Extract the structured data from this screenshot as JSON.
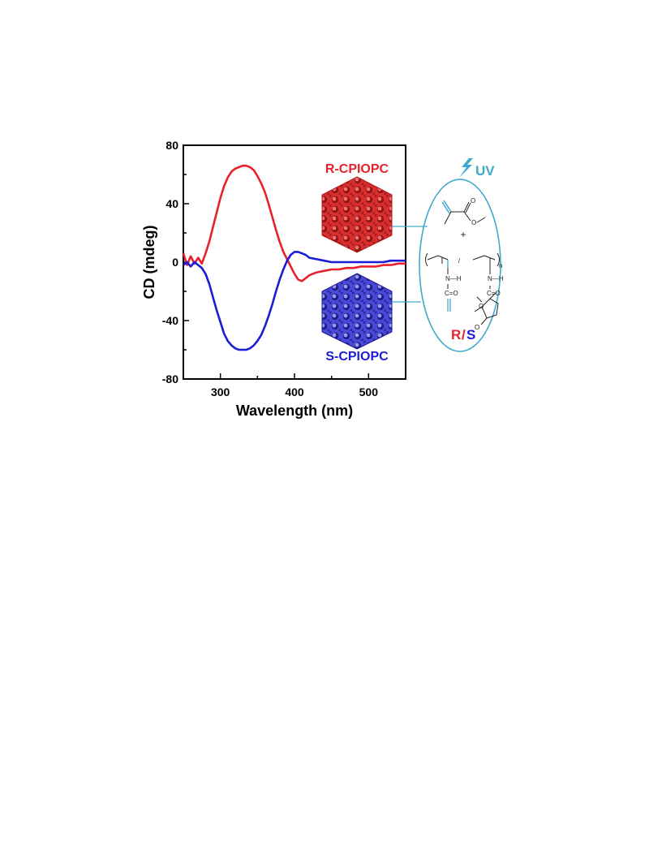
{
  "chart_data": {
    "type": "line",
    "xlabel": "Wavelength (nm)",
    "ylabel": "CD (mdeg)",
    "xlim": [
      250,
      550
    ],
    "ylim": [
      -80,
      80
    ],
    "xticks": [
      "300",
      "400",
      "500"
    ],
    "yticks": [
      "80",
      "40",
      "0",
      "-40",
      "-80"
    ],
    "grid": false,
    "series": [
      {
        "name": "R-CPIOPC",
        "color": "#e8212b",
        "x": [
          250,
          255,
          260,
          265,
          270,
          275,
          280,
          285,
          290,
          295,
          300,
          305,
          310,
          315,
          320,
          325,
          330,
          335,
          340,
          345,
          350,
          355,
          360,
          365,
          370,
          375,
          380,
          385,
          390,
          395,
          400,
          405,
          410,
          415,
          420,
          430,
          440,
          450,
          460,
          470,
          480,
          490,
          500,
          510,
          520,
          530,
          540,
          550
        ],
        "y": [
          6,
          -2,
          4,
          -1,
          3,
          -1,
          6,
          14,
          24,
          34,
          44,
          52,
          58,
          62,
          64,
          65,
          66,
          66,
          65,
          63,
          59,
          54,
          48,
          40,
          31,
          22,
          14,
          7,
          2,
          -3,
          -8,
          -12,
          -13,
          -11,
          -9,
          -7,
          -6,
          -5,
          -5,
          -4,
          -4,
          -3,
          -3,
          -3,
          -2,
          -2,
          -1,
          -1
        ]
      },
      {
        "name": "S-CPIOPC",
        "color": "#1c1cd6",
        "x": [
          250,
          255,
          260,
          265,
          270,
          275,
          280,
          285,
          290,
          295,
          300,
          305,
          310,
          315,
          320,
          325,
          330,
          335,
          340,
          345,
          350,
          355,
          360,
          365,
          370,
          375,
          380,
          385,
          390,
          395,
          400,
          405,
          410,
          415,
          420,
          430,
          440,
          450,
          460,
          470,
          480,
          490,
          500,
          510,
          520,
          530,
          540,
          550
        ],
        "y": [
          -2,
          0,
          -3,
          0,
          -2,
          -4,
          -8,
          -15,
          -24,
          -33,
          -41,
          -49,
          -54,
          -57,
          -59,
          -60,
          -60,
          -60,
          -59,
          -57,
          -54,
          -50,
          -44,
          -37,
          -29,
          -20,
          -12,
          -5,
          1,
          5,
          7,
          7,
          6,
          5,
          3,
          2,
          1,
          0,
          0,
          0,
          0,
          0,
          0,
          0,
          0,
          1,
          1,
          1
        ]
      }
    ]
  },
  "labels": {
    "r_label": "R-CPIOPC",
    "s_label": "S-CPIOPC",
    "uv": "UV",
    "r_letter": "R",
    "slash": "/",
    "s_letter": "S",
    "plus": "+",
    "nh": "N—H",
    "co": "C=O",
    "n_sub": "n"
  }
}
